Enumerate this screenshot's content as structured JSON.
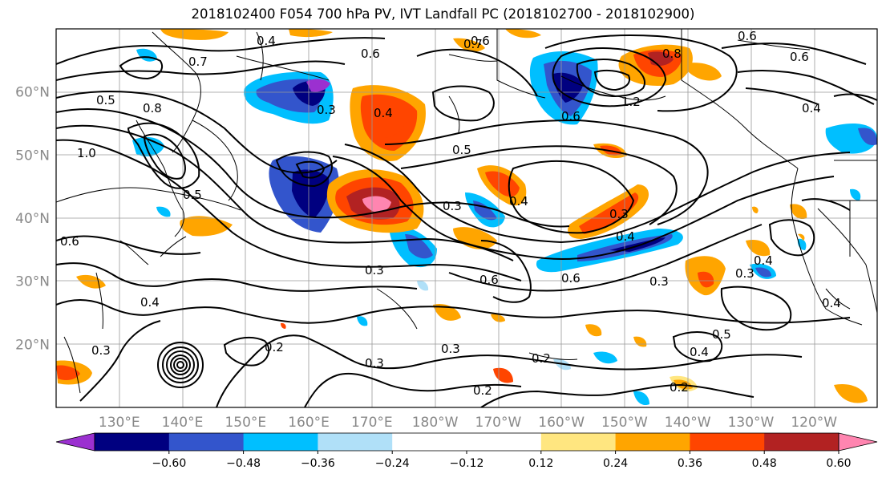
{
  "title": "2018102400 F054 700 hPa PV, IVT Landfall PC (2018102700 - 2018102900)",
  "map": {
    "lat_labels": [
      {
        "label": "60°N",
        "lat": 60
      },
      {
        "label": "50°N",
        "lat": 50
      },
      {
        "label": "40°N",
        "lat": 40
      },
      {
        "label": "30°N",
        "lat": 30
      },
      {
        "label": "20°N",
        "lat": 20
      }
    ],
    "lon_labels": [
      {
        "label": "130°E",
        "lon": 130
      },
      {
        "label": "140°E",
        "lon": 140
      },
      {
        "label": "150°E",
        "lon": 150
      },
      {
        "label": "160°E",
        "lon": 160
      },
      {
        "label": "170°E",
        "lon": 170
      },
      {
        "label": "180°W",
        "lon": 180
      },
      {
        "label": "170°W",
        "lon": 190
      },
      {
        "label": "160°W",
        "lon": 200
      },
      {
        "label": "150°W",
        "lon": 210
      },
      {
        "label": "140°W",
        "lon": 220
      },
      {
        "label": "130°W",
        "lon": 230
      },
      {
        "label": "120°W",
        "lon": 240
      }
    ],
    "lon_range": [
      120,
      250
    ],
    "lat_range": [
      10,
      70
    ],
    "contour_labels": [
      "0.4",
      "0.7",
      "0.6",
      "0.5",
      "0.8",
      "0.4",
      "0.3",
      "0.6",
      "1.0",
      "0.7",
      "0.6",
      "0.3",
      "0.4",
      "0.3",
      "0.4",
      "0.3",
      "0.2",
      "0.3",
      "0.3",
      "0.2",
      "0.2",
      "0.4",
      "0.2",
      "0.5",
      "0.4",
      "0.3",
      "0.4",
      "0.3",
      "0.6",
      "0.6",
      "0.8",
      "0.3",
      "0.4",
      "0.6",
      "1.2",
      "0.6",
      "0.6",
      "0.5",
      "0.4",
      "0.5"
    ]
  },
  "colorbar": {
    "ticks": [
      "−0.60",
      "−0.48",
      "−0.36",
      "−0.24",
      "−0.12",
      "0.12",
      "0.24",
      "0.36",
      "0.48",
      "0.60"
    ],
    "colors": [
      "#9b30d0",
      "#000080",
      "#3355cc",
      "#00bfff",
      "#b0e0f8",
      "#ffffff",
      "#ffe680",
      "#ffa500",
      "#ff4500",
      "#b22222",
      "#ff85b0",
      "#ff85b0"
    ],
    "min_color": "#9b30d0",
    "max_color": "#ff85b0"
  }
}
